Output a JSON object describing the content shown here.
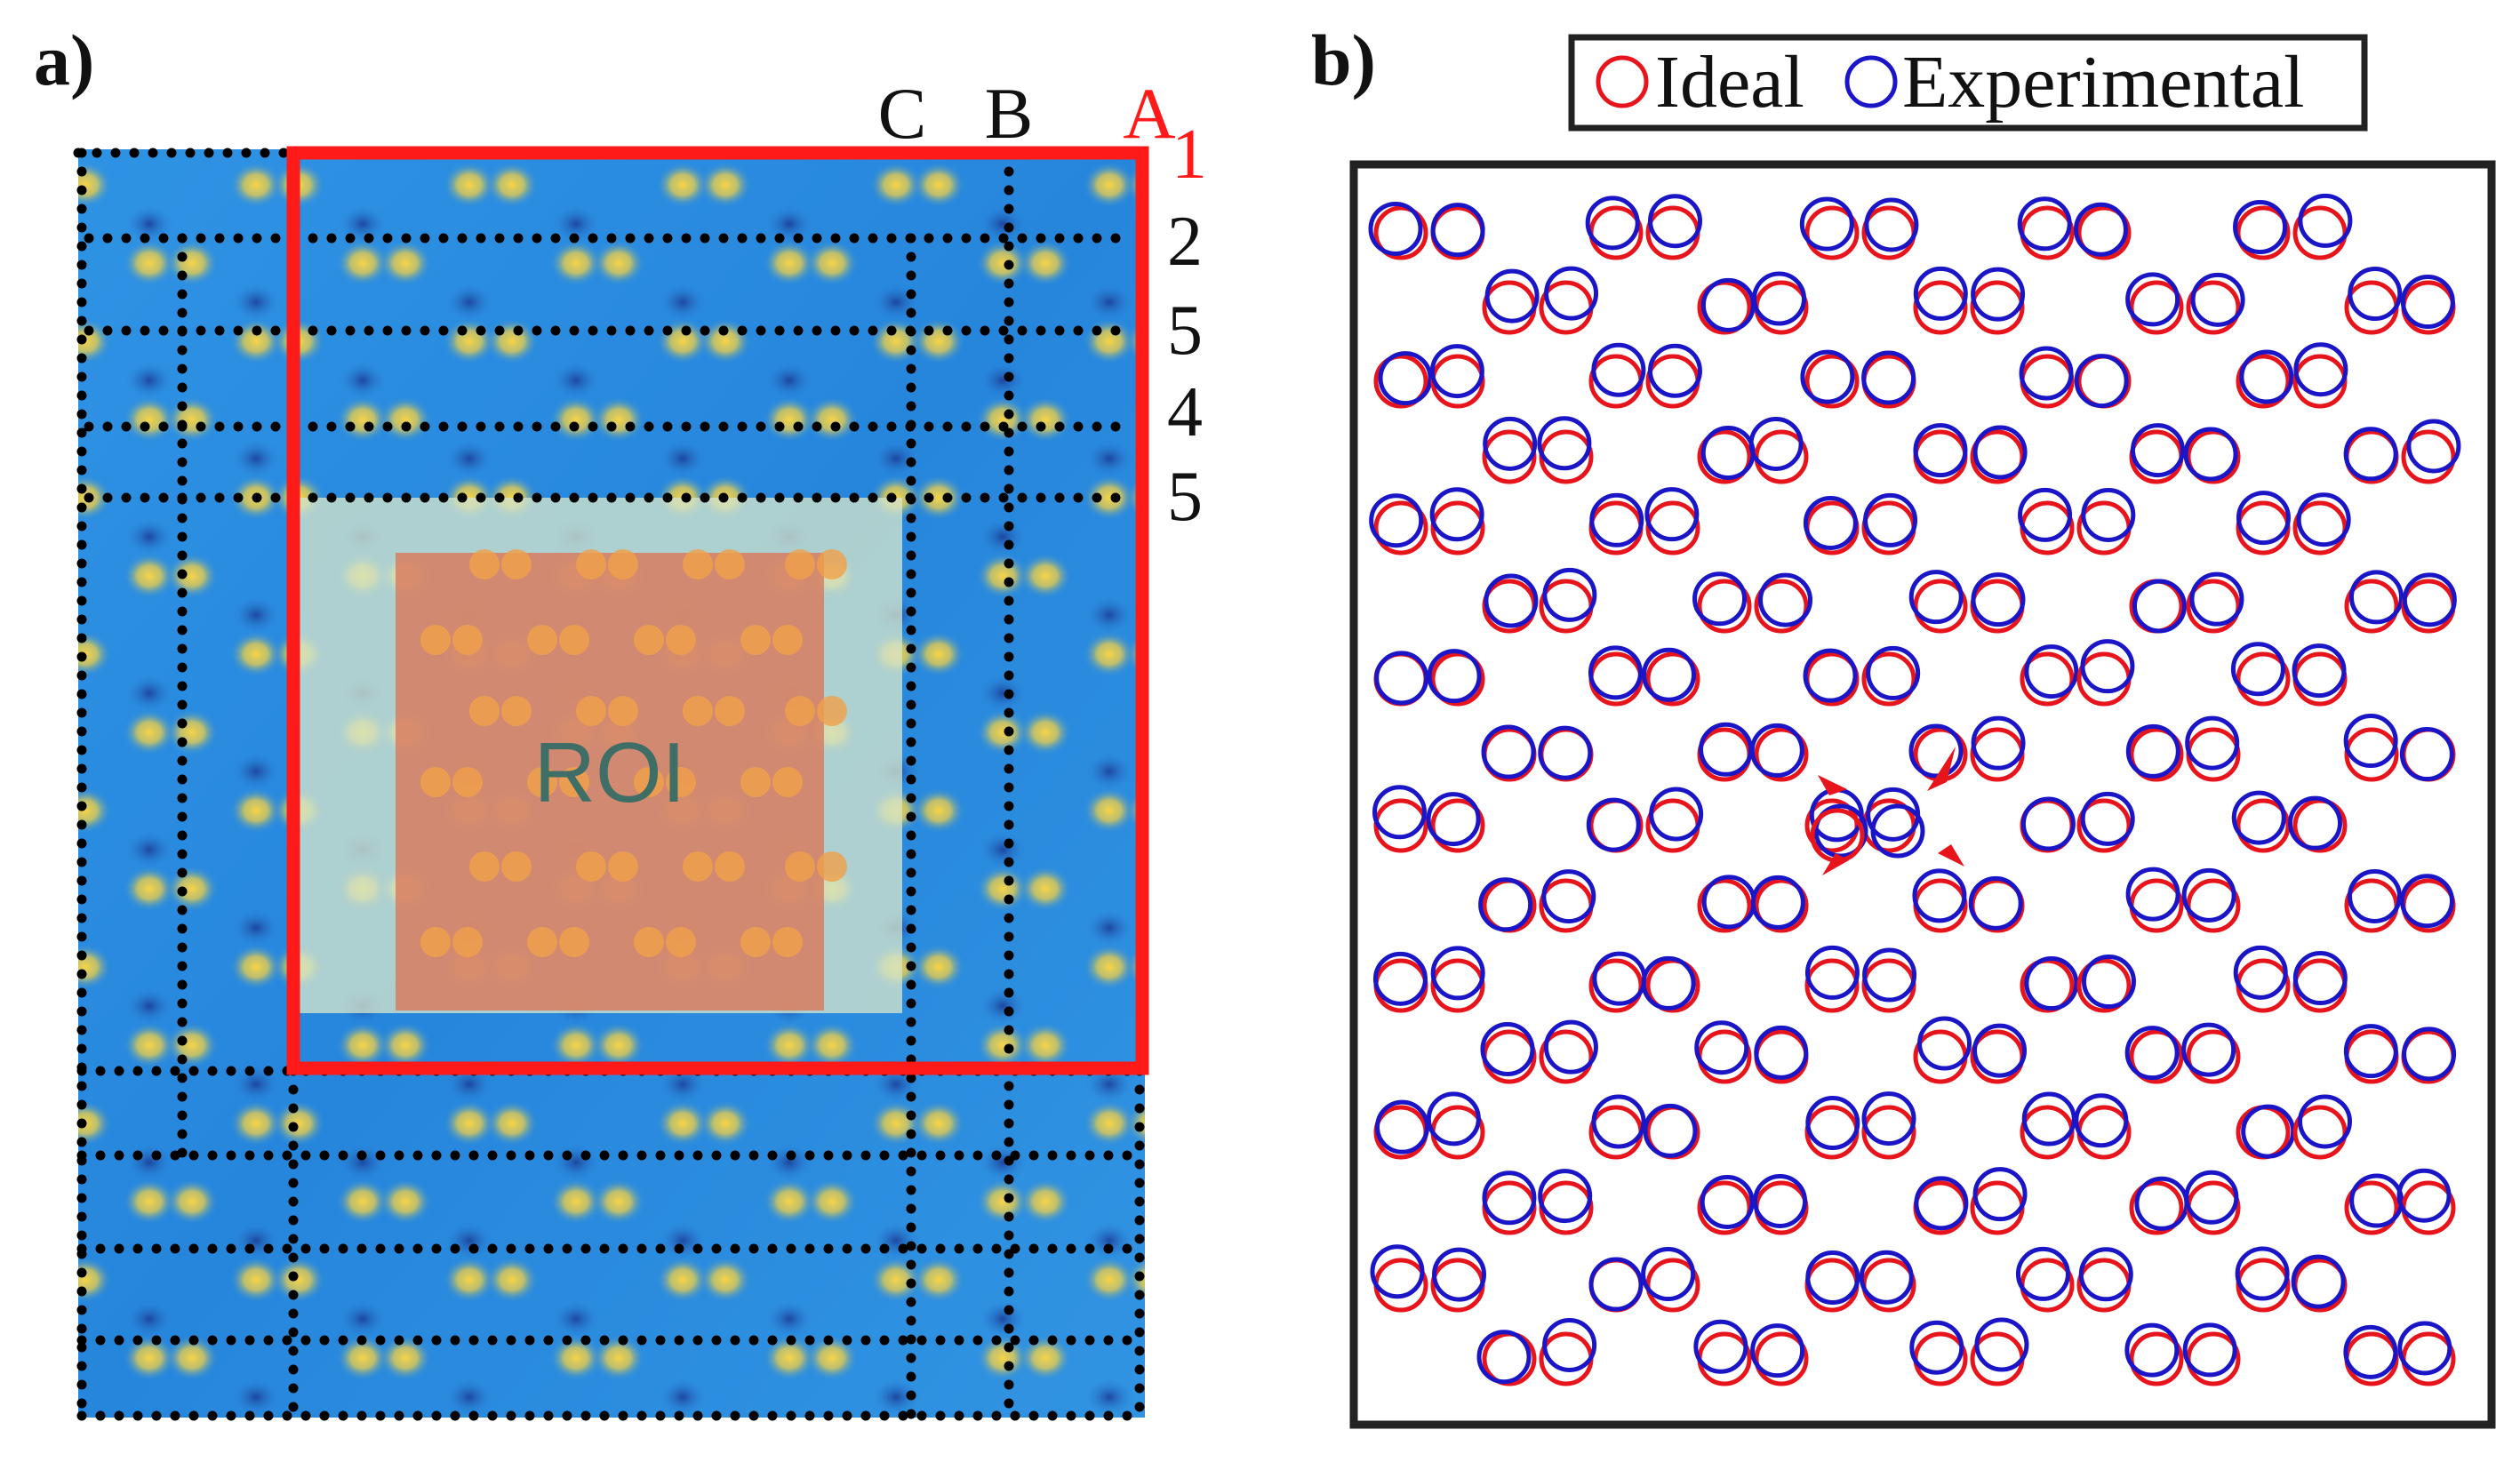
{
  "panel_a": {
    "label": "a)",
    "roi_label": "ROI",
    "region_labels": [
      "C",
      "B",
      "A"
    ],
    "row_labels": [
      "1",
      "2",
      "5",
      "4",
      "5"
    ],
    "colors": {
      "map_background": "#2a8be0",
      "map_hot": "#f2c34a",
      "map_cold": "#1f4fa8",
      "frame": "#ff1a1a",
      "dots": "#000000",
      "roi_fill": "#d97a5c",
      "roi_halo": "#cfe0c8"
    }
  },
  "panel_b": {
    "label": "b)",
    "legend": {
      "ideal": "Ideal",
      "experimental": "Experimental"
    },
    "colors": {
      "ideal": "#e8141c",
      "experimental": "#1a16c8",
      "frame": "#222222"
    }
  }
}
